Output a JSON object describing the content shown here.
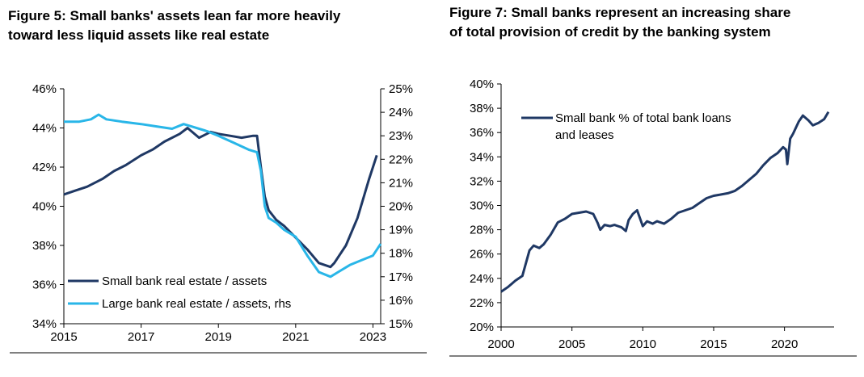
{
  "chart_data": [
    {
      "type": "line",
      "title": "Figure 5: Small banks' assets lean far more heavily toward less liquid assets like real estate",
      "title_lines": [
        "Figure 5: Small banks' assets lean far more heavily",
        "toward less liquid assets like real estate"
      ],
      "x_ticks": [
        "2015",
        "2017",
        "2019",
        "2021",
        "2023"
      ],
      "xlim": [
        2015,
        2023.2
      ],
      "y_left_ticks": [
        "34%",
        "36%",
        "38%",
        "40%",
        "42%",
        "44%",
        "46%"
      ],
      "ylim_left": [
        34,
        46
      ],
      "y_right_ticks": [
        "15%",
        "16%",
        "17%",
        "18%",
        "19%",
        "20%",
        "21%",
        "22%",
        "23%",
        "24%",
        "25%"
      ],
      "ylim_right": [
        15,
        25
      ],
      "legend_placement": "bottom-left",
      "series": [
        {
          "name": "Small bank real estate / assets",
          "axis": "left",
          "color": "#1f3864",
          "x": [
            2015.0,
            2015.3,
            2015.6,
            2016.0,
            2016.3,
            2016.6,
            2017.0,
            2017.3,
            2017.6,
            2018.0,
            2018.2,
            2018.5,
            2018.8,
            2019.0,
            2019.3,
            2019.6,
            2019.9,
            2020.0,
            2020.1,
            2020.2,
            2020.3,
            2020.5,
            2020.7,
            2021.0,
            2021.3,
            2021.6,
            2021.9,
            2022.0,
            2022.3,
            2022.6,
            2022.9,
            2023.1
          ],
          "y": [
            40.6,
            40.8,
            41.0,
            41.4,
            41.8,
            42.1,
            42.6,
            42.9,
            43.3,
            43.7,
            44.0,
            43.5,
            43.8,
            43.7,
            43.6,
            43.5,
            43.6,
            43.6,
            42.0,
            40.5,
            39.8,
            39.3,
            39.0,
            38.4,
            37.8,
            37.1,
            36.9,
            37.1,
            38.0,
            39.4,
            41.4,
            42.6
          ]
        },
        {
          "name": "Large bank real estate / assets, rhs",
          "axis": "right",
          "color": "#29b6e8",
          "x": [
            2015.0,
            2015.4,
            2015.7,
            2015.9,
            2016.1,
            2016.5,
            2017.0,
            2017.4,
            2017.8,
            2018.1,
            2018.3,
            2018.7,
            2019.0,
            2019.4,
            2019.8,
            2020.0,
            2020.1,
            2020.2,
            2020.3,
            2020.5,
            2020.7,
            2021.0,
            2021.3,
            2021.6,
            2021.9,
            2022.1,
            2022.4,
            2022.7,
            2023.0,
            2023.2
          ],
          "y": [
            23.6,
            23.6,
            23.7,
            23.9,
            23.7,
            23.6,
            23.5,
            23.4,
            23.3,
            23.5,
            23.4,
            23.2,
            23.0,
            22.7,
            22.4,
            22.3,
            21.5,
            20.0,
            19.5,
            19.3,
            19.0,
            18.7,
            17.9,
            17.2,
            17.0,
            17.2,
            17.5,
            17.7,
            17.9,
            18.4
          ]
        }
      ]
    },
    {
      "type": "line",
      "title": "Figure 7: Small banks represent an increasing share of total provision of credit by the banking system",
      "title_lines": [
        "Figure 7: Small banks represent an increasing share",
        "of total provision of credit by the banking system"
      ],
      "x_ticks": [
        "2000",
        "2005",
        "2010",
        "2015",
        "2020"
      ],
      "xlim": [
        2000,
        2023.5
      ],
      "y_ticks": [
        "20%",
        "22%",
        "24%",
        "26%",
        "28%",
        "30%",
        "32%",
        "34%",
        "36%",
        "38%",
        "40%"
      ],
      "ylim": [
        20,
        40
      ],
      "legend_placement": "top-left",
      "series": [
        {
          "name": "Small bank % of total bank loans and leases",
          "name_lines": [
            "Small bank % of total bank loans",
            "and leases"
          ],
          "color": "#1f3864",
          "x": [
            2000.0,
            2000.5,
            2001.0,
            2001.5,
            2002.0,
            2002.3,
            2002.7,
            2003.0,
            2003.5,
            2004.0,
            2004.5,
            2005.0,
            2005.5,
            2006.0,
            2006.5,
            2006.8,
            2007.0,
            2007.3,
            2007.7,
            2008.0,
            2008.5,
            2008.8,
            2009.0,
            2009.3,
            2009.6,
            2010.0,
            2010.3,
            2010.7,
            2011.0,
            2011.5,
            2012.0,
            2012.5,
            2013.0,
            2013.5,
            2014.0,
            2014.5,
            2015.0,
            2015.5,
            2016.0,
            2016.5,
            2017.0,
            2017.5,
            2018.0,
            2018.5,
            2019.0,
            2019.5,
            2019.9,
            2020.1,
            2020.2,
            2020.4,
            2020.6,
            2021.0,
            2021.3,
            2021.7,
            2022.0,
            2022.4,
            2022.8,
            2023.1
          ],
          "y": [
            22.9,
            23.3,
            23.8,
            24.2,
            26.3,
            26.7,
            26.5,
            26.8,
            27.6,
            28.6,
            28.9,
            29.3,
            29.4,
            29.5,
            29.3,
            28.6,
            28.0,
            28.4,
            28.3,
            28.4,
            28.2,
            27.9,
            28.8,
            29.3,
            29.6,
            28.3,
            28.7,
            28.5,
            28.7,
            28.5,
            28.9,
            29.4,
            29.6,
            29.8,
            30.2,
            30.6,
            30.8,
            30.9,
            31.0,
            31.2,
            31.6,
            32.1,
            32.6,
            33.3,
            33.9,
            34.3,
            34.8,
            34.6,
            33.4,
            35.5,
            35.9,
            36.9,
            37.4,
            37.0,
            36.6,
            36.8,
            37.1,
            37.7
          ]
        }
      ]
    }
  ]
}
